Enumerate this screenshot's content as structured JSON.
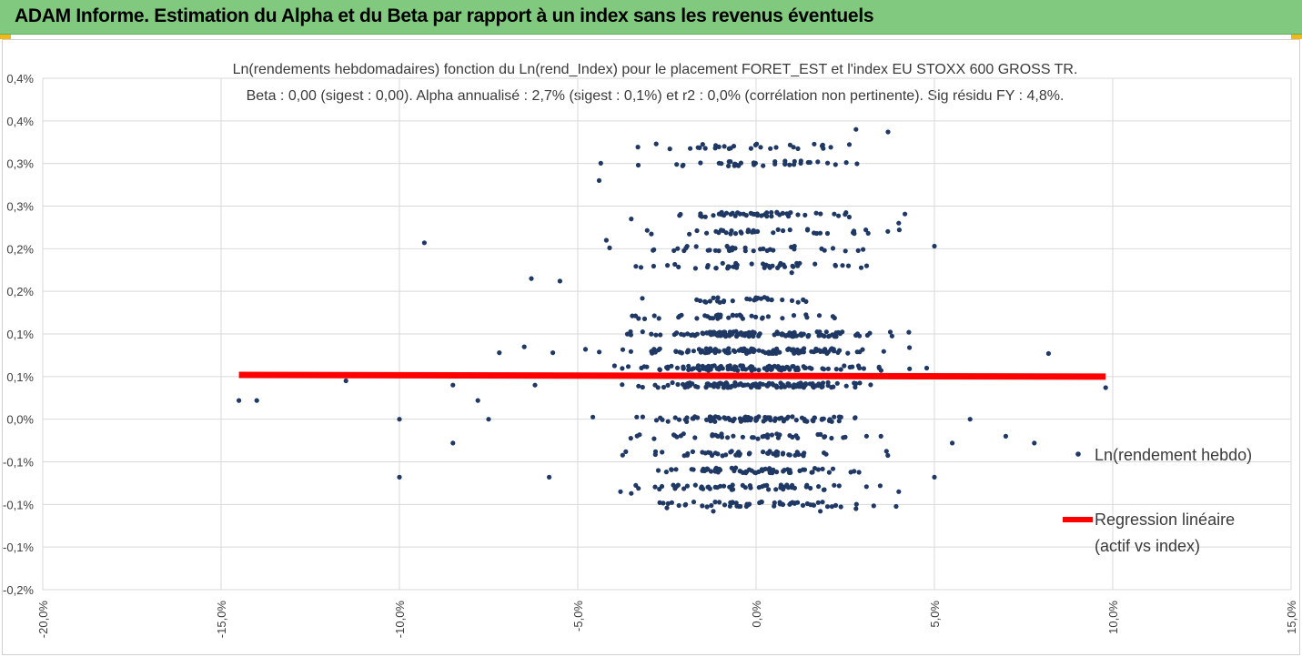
{
  "header": {
    "title": "ADAM Informe. Estimation du Alpha et du Beta par rapport à un index sans les revenus éventuels"
  },
  "colors": {
    "banner": "#80c97e",
    "points": "#1f3864",
    "regression": "#ff0000",
    "accent": "#f3b814"
  },
  "chart_data": {
    "type": "scatter",
    "title": "Ln(rendements hebdomadaires) fonction du Ln(rend_Index) pour le placement FORET_EST et l'index EU STOXX 600 GROSS TR.",
    "subtitle": "Beta : 0,00 (sigest : 0,00). Alpha annualisé : 2,7% (sigest : 0,1%) et r2 : 0,0% (corrélation non pertinente). Sig résidu FY : 4,8%.",
    "xlabel": "",
    "ylabel": "",
    "xlim": [
      -20,
      15
    ],
    "ylim": [
      -0.2,
      0.4
    ],
    "x_ticks": [
      -20,
      -15,
      -10,
      -5,
      0,
      5,
      10,
      15
    ],
    "x_tick_labels": [
      "-20,0%",
      "-15,0%",
      "-10,0%",
      "-5,0%",
      "0,0%",
      "5,0%",
      "10,0%",
      "15,0%"
    ],
    "y_ticks": [
      0.4,
      0.35,
      0.3,
      0.25,
      0.2,
      0.15,
      0.1,
      0.05,
      0.0,
      -0.05,
      -0.1,
      -0.15,
      -0.2
    ],
    "y_tick_labels": [
      "0,4%",
      "0,4%",
      "0,3%",
      "0,3%",
      "0,2%",
      "0,2%",
      "0,1%",
      "0,1%",
      "0,0%",
      "-0,1%",
      "-0,1%",
      "-0,1%",
      "-0,2%"
    ],
    "grid": true,
    "legend_position": "right",
    "series": [
      {
        "name": "Ln(rendement hebdo)",
        "type": "scatter",
        "levels": [
          -0.1,
          -0.08,
          -0.06,
          -0.04,
          -0.02,
          0.0,
          0.04,
          0.06,
          0.08,
          0.1,
          0.12,
          0.14,
          0.18,
          0.2,
          0.22,
          0.24,
          0.3,
          0.32
        ],
        "points": [
          [
            -14.5,
            0.022
          ],
          [
            -14.0,
            0.022
          ],
          [
            -11.5,
            0.045
          ],
          [
            -10.0,
            0.0
          ],
          [
            -10.0,
            -0.068
          ],
          [
            -9.3,
            0.207
          ],
          [
            -8.5,
            0.04
          ],
          [
            -8.5,
            -0.028
          ],
          [
            -7.5,
            0.0
          ],
          [
            -7.2,
            0.078
          ],
          [
            -6.5,
            0.085
          ],
          [
            -6.3,
            0.165
          ],
          [
            -5.5,
            0.162
          ],
          [
            -5.8,
            -0.068
          ],
          [
            -5.7,
            0.078
          ],
          [
            -4.4,
            0.28
          ],
          [
            -4.2,
            0.21
          ],
          [
            -3.5,
            0.235
          ],
          [
            1.0,
            0.172
          ],
          [
            3.1,
            0.18
          ],
          [
            2.8,
            0.34
          ],
          [
            3.7,
            0.337
          ],
          [
            4.0,
            0.23
          ],
          [
            4.3,
            0.084
          ],
          [
            5.0,
            0.203
          ],
          [
            8.2,
            0.077
          ],
          [
            9.8,
            0.037
          ],
          [
            7.0,
            -0.02
          ],
          [
            7.8,
            -0.028
          ],
          [
            6.0,
            0.0
          ],
          [
            5.5,
            -0.028
          ],
          [
            5.0,
            -0.068
          ],
          [
            4.0,
            -0.085
          ],
          [
            3.5,
            -0.02
          ],
          [
            -3.8,
            -0.085
          ],
          [
            -3.5,
            -0.087
          ],
          [
            -2.5,
            -0.104
          ],
          [
            -1.2,
            -0.108
          ],
          [
            1.8,
            -0.108
          ],
          [
            2.8,
            -0.105
          ],
          [
            -6.2,
            0.04
          ],
          [
            -7.8,
            0.022
          ]
        ]
      },
      {
        "name": "Regression linéaire (actif vs index)",
        "name_lines": [
          "Regression linéaire",
          "(actif vs index)"
        ],
        "type": "line",
        "x": [
          -14.5,
          9.8
        ],
        "y": [
          0.052,
          0.05
        ]
      }
    ]
  }
}
